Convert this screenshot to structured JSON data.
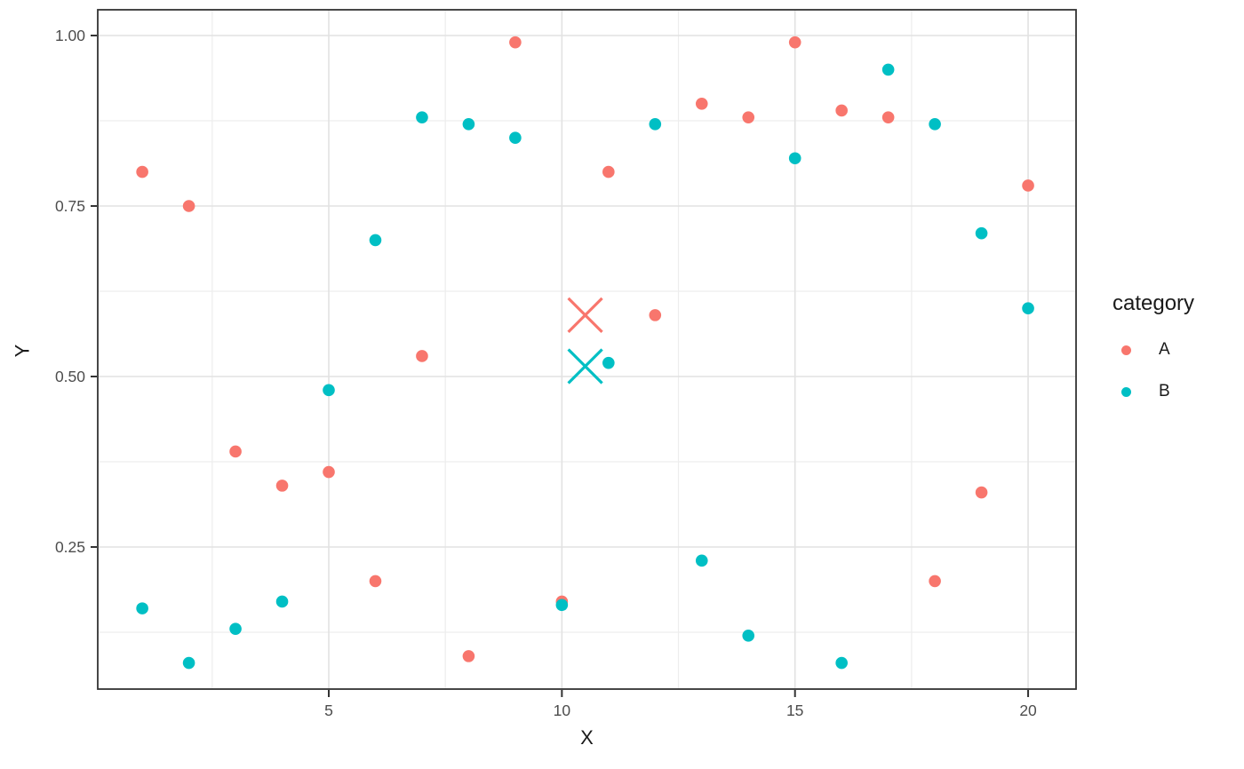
{
  "chart_data": {
    "type": "scatter",
    "title": "",
    "xlabel": "X",
    "ylabel": "Y",
    "x_ticks": [
      {
        "value": 5,
        "label": "5"
      },
      {
        "value": 10,
        "label": "10"
      },
      {
        "value": 15,
        "label": "15"
      },
      {
        "value": 20,
        "label": "20"
      }
    ],
    "y_ticks": [
      {
        "value": 0.25,
        "label": "0.25"
      },
      {
        "value": 0.5,
        "label": "0.50"
      },
      {
        "value": 0.75,
        "label": "0.75"
      },
      {
        "value": 1.0,
        "label": "1.00"
      }
    ],
    "x_minor": [
      2.5,
      7.5,
      12.5,
      17.5
    ],
    "y_minor": [
      0.125,
      0.375,
      0.625,
      0.875
    ],
    "x_domain": [
      0.045,
      21.03
    ],
    "y_domain": [
      0.042,
      1.038
    ],
    "grid": true,
    "legend": {
      "title": "category",
      "position": "right",
      "entries": [
        {
          "label": "A",
          "color": "#F8766D"
        },
        {
          "label": "B",
          "color": "#00BFC4"
        }
      ]
    },
    "series": [
      {
        "name": "A",
        "color": "#F8766D",
        "points": [
          [
            1,
            0.8
          ],
          [
            2,
            0.75
          ],
          [
            3,
            0.39
          ],
          [
            4,
            0.34
          ],
          [
            5,
            0.36
          ],
          [
            6,
            0.2
          ],
          [
            7,
            0.53
          ],
          [
            8,
            0.09
          ],
          [
            9,
            0.99
          ],
          [
            10,
            0.17
          ],
          [
            11,
            0.8
          ],
          [
            12,
            0.59
          ],
          [
            13,
            0.9
          ],
          [
            14,
            0.88
          ],
          [
            15,
            0.99
          ],
          [
            16,
            0.89
          ],
          [
            17,
            0.88
          ],
          [
            18,
            0.2
          ],
          [
            19,
            0.33
          ],
          [
            20,
            0.78
          ]
        ]
      },
      {
        "name": "B",
        "color": "#00BFC4",
        "points": [
          [
            1,
            0.16
          ],
          [
            2,
            0.08
          ],
          [
            3,
            0.13
          ],
          [
            4,
            0.17
          ],
          [
            5,
            0.48
          ],
          [
            6,
            0.7
          ],
          [
            7,
            0.88
          ],
          [
            8,
            0.87
          ],
          [
            9,
            0.85
          ],
          [
            10,
            0.165
          ],
          [
            11,
            0.52
          ],
          [
            12,
            0.87
          ],
          [
            13,
            0.23
          ],
          [
            14,
            0.12
          ],
          [
            15,
            0.82
          ],
          [
            16,
            0.08
          ],
          [
            17,
            0.95
          ],
          [
            18,
            0.87
          ],
          [
            19,
            0.71
          ],
          [
            20,
            0.6
          ]
        ]
      }
    ],
    "mean_markers": [
      {
        "series": "A",
        "color": "#F8766D",
        "shape": "x",
        "x": 10.5,
        "y": 0.59
      },
      {
        "series": "B",
        "color": "#00BFC4",
        "shape": "x",
        "x": 10.5,
        "y": 0.515
      }
    ]
  },
  "colors": {
    "background": "#FFFFFF",
    "panel_background": "#FFFFFF",
    "grid_major": "#E2E2E2",
    "grid_minor": "#EDEDED",
    "panel_border": "#333333",
    "tick_mark": "#333333",
    "tick_text": "#4D4D4D",
    "title_text": "#1A1A1A"
  }
}
